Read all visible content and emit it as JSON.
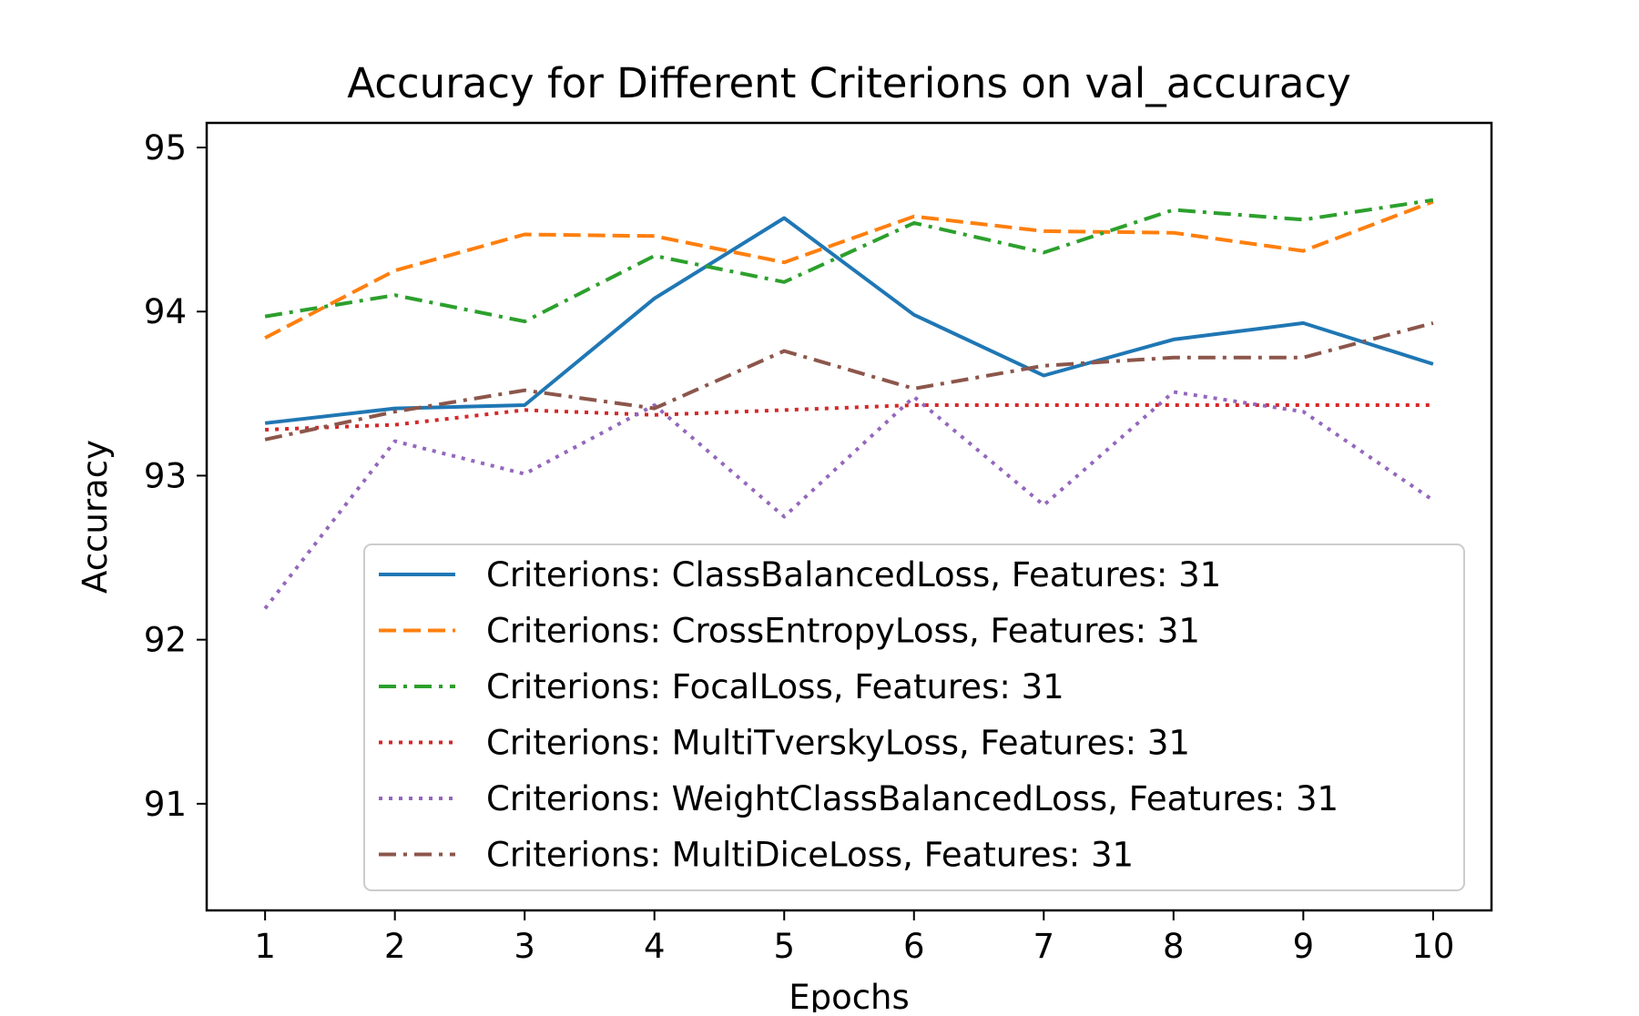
{
  "chart_data": {
    "type": "line",
    "title": "Accuracy for Different Criterions on val_accuracy",
    "xlabel": "Epochs",
    "ylabel": "Accuracy",
    "x": [
      1,
      2,
      3,
      4,
      5,
      6,
      7,
      8,
      9,
      10
    ],
    "xlim": [
      0.55,
      10.45
    ],
    "ylim": [
      90.35,
      95.15
    ],
    "yticks": [
      91,
      92,
      93,
      94,
      95
    ],
    "grid": false,
    "legend_position": "lower-right",
    "series": [
      {
        "name": "Criterions: ClassBalancedLoss, Features: 31",
        "color": "#1f77b4",
        "linestyle": "solid",
        "values": [
          93.32,
          93.41,
          93.43,
          94.08,
          94.57,
          93.98,
          93.61,
          93.83,
          93.93,
          93.68
        ]
      },
      {
        "name": "Criterions: CrossEntropyLoss, Features: 31",
        "color": "#ff7f0e",
        "linestyle": "dashed",
        "values": [
          93.84,
          94.25,
          94.47,
          94.46,
          94.3,
          94.58,
          94.49,
          94.48,
          94.37,
          94.67
        ]
      },
      {
        "name": "Criterions: FocalLoss, Features: 31",
        "color": "#2ca02c",
        "linestyle": "dashdot",
        "values": [
          93.97,
          94.1,
          93.94,
          94.34,
          94.18,
          94.54,
          94.36,
          94.62,
          94.56,
          94.68
        ]
      },
      {
        "name": "Criterions: MultiTverskyLoss, Features: 31",
        "color": "#d62728",
        "linestyle": "dotted",
        "values": [
          93.28,
          93.31,
          93.4,
          93.37,
          93.4,
          93.43,
          93.43,
          93.43,
          93.43,
          93.43
        ]
      },
      {
        "name": "Criterions: WeightClassBalancedLoss, Features: 31",
        "color": "#9467bd",
        "linestyle": "dotted",
        "values": [
          92.19,
          93.21,
          93.01,
          93.43,
          92.75,
          93.48,
          92.82,
          93.51,
          93.39,
          92.85
        ]
      },
      {
        "name": "Criterions: MultiDiceLoss, Features: 31",
        "color": "#8c564b",
        "linestyle": "dashdot",
        "values": [
          93.22,
          93.39,
          93.52,
          93.41,
          93.76,
          93.53,
          93.67,
          93.72,
          93.72,
          93.93
        ]
      }
    ]
  }
}
